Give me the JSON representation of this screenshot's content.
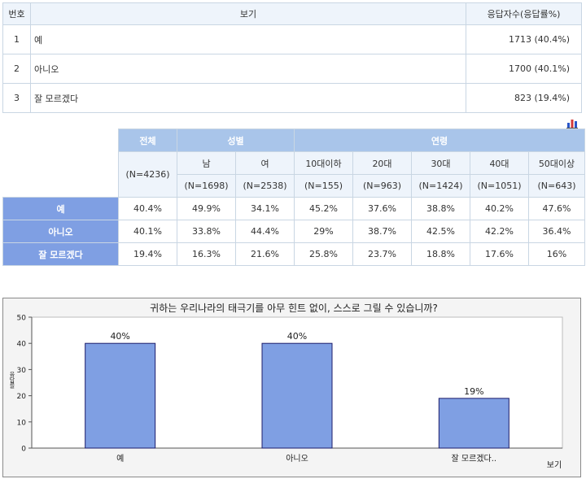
{
  "response_table": {
    "headers": {
      "number": "번호",
      "option": "보기",
      "count": "응답자수(응답률%)"
    },
    "rows": [
      {
        "number": "1",
        "option": "예",
        "count": "1713 (40.4%)"
      },
      {
        "number": "2",
        "option": "아니오",
        "count": "1700 (40.1%)"
      },
      {
        "number": "3",
        "option": "잘 모르겠다",
        "count": "823 (19.4%)"
      }
    ]
  },
  "crosstab": {
    "total_label": "전체",
    "total_n": "(N=4236)",
    "gender_label": "성별",
    "age_label": "연령",
    "columns": [
      {
        "label": "남",
        "n": "(N=1698)"
      },
      {
        "label": "여",
        "n": "(N=2538)"
      },
      {
        "label": "10대이하",
        "n": "(N=155)"
      },
      {
        "label": "20대",
        "n": "(N=963)"
      },
      {
        "label": "30대",
        "n": "(N=1424)"
      },
      {
        "label": "40대",
        "n": "(N=1051)"
      },
      {
        "label": "50대이상",
        "n": "(N=643)"
      }
    ],
    "rows": [
      {
        "label": "예",
        "values": [
          "40.4%",
          "49.9%",
          "34.1%",
          "45.2%",
          "37.6%",
          "38.8%",
          "40.2%",
          "47.6%"
        ]
      },
      {
        "label": "아니오",
        "values": [
          "40.1%",
          "33.8%",
          "44.4%",
          "29%",
          "38.7%",
          "42.5%",
          "42.2%",
          "36.4%"
        ]
      },
      {
        "label": "잘 모르겠다",
        "values": [
          "19.4%",
          "16.3%",
          "21.6%",
          "25.8%",
          "23.7%",
          "18.8%",
          "17.6%",
          "16%"
        ]
      }
    ]
  },
  "chart_data": {
    "type": "bar",
    "title": "귀하는 우리나라의 태극기를 아무 힌트 없이, 스스로 그릴 수 있습니까?",
    "xlabel": "보기",
    "ylabel": "응답률",
    "categories": [
      "예",
      "아니오",
      "잘 모르겠다.."
    ],
    "values": [
      40,
      40,
      19
    ],
    "data_labels": [
      "40%",
      "40%",
      "19%"
    ],
    "ylim": [
      0,
      50
    ],
    "yticks": [
      0,
      10,
      20,
      30,
      40,
      50
    ],
    "bar_color": "#7f9fe3",
    "grid": false
  }
}
